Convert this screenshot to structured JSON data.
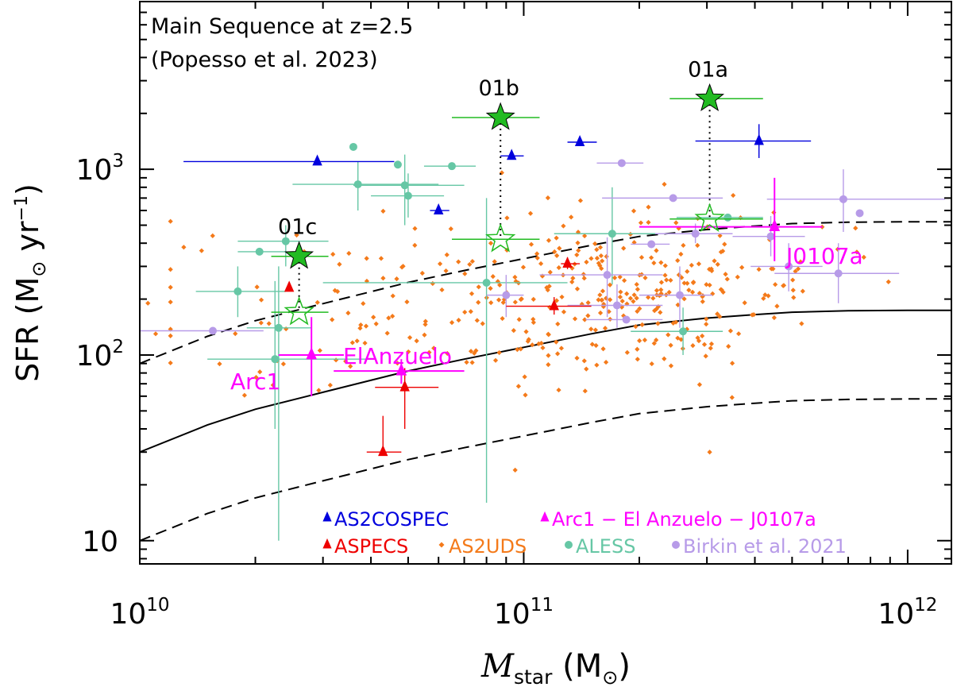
{
  "chart_data": {
    "type": "scatter",
    "x_scale": "log",
    "y_scale": "log",
    "xlim": [
      10000000000.0,
      1300000000000.0
    ],
    "ylim": [
      7.5,
      8000
    ],
    "xlabel": {
      "main": "M",
      "sub": "star",
      "unit_pre": " (M",
      "unit_sym": "⊙",
      "unit_post": ")"
    },
    "ylabel": {
      "pre": "SFR (M",
      "sym": "⊙",
      "mid": " yr",
      "sup": "−1",
      "post": ")"
    },
    "x_ticks": [
      {
        "v": 10000000000.0,
        "base": "10",
        "exp": "10"
      },
      {
        "v": 100000000000.0,
        "base": "10",
        "exp": "11"
      },
      {
        "v": 1000000000000.0,
        "base": "10",
        "exp": "12"
      }
    ],
    "y_ticks": [
      {
        "v": 10,
        "base": "10",
        "exp": ""
      },
      {
        "v": 100,
        "base": "10",
        "exp": "2"
      },
      {
        "v": 1000,
        "base": "10",
        "exp": "3"
      }
    ],
    "annotation": {
      "line1": "Main Sequence at z=2.5",
      "line2": "(Popesso et al. 2023)"
    },
    "colors": {
      "as2cospec": "#0000dd",
      "aspecs": "#ee0000",
      "as2uds": "#f47a1a",
      "aless": "#66c7a5",
      "birkin": "#b79be8",
      "lensed": "#ff00ff",
      "stars": "#22bb22"
    },
    "main_sequence": {
      "x": [
        10000000000.0,
        15000000000.0,
        20000000000.0,
        30000000000.0,
        50000000000.0,
        70000000000.0,
        100000000000.0,
        150000000000.0,
        200000000000.0,
        300000000000.0,
        400000000000.0,
        500000000000.0,
        700000000000.0,
        1000000000000.0,
        1300000000000.0
      ],
      "y": [
        30,
        42,
        51,
        63,
        82,
        95,
        110,
        130,
        145,
        158,
        165,
        170,
        173,
        174,
        174
      ],
      "scatter_factor": 3.0
    },
    "targets": [
      {
        "name": "01a",
        "x": 305000000000.0,
        "y_obs": 2400,
        "y_corr": 540,
        "xerr": [
          240000000000.0,
          420000000000.0
        ]
      },
      {
        "name": "01b",
        "x": 87000000000.0,
        "y_obs": 1900,
        "y_corr": 420,
        "xerr": [
          65000000000.0,
          110000000000.0
        ]
      },
      {
        "name": "01c",
        "x": 26000000000.0,
        "y_obs": 340,
        "y_corr": 170,
        "xerr": [
          22000000000.0,
          31000000000.0
        ]
      }
    ],
    "lensed_labels": [
      "Arc1",
      "ElAnzuelo",
      "J0107a"
    ],
    "lensed": [
      {
        "x": 28000000000.0,
        "y": 100,
        "xerr": [
          23000000000.0,
          34000000000.0
        ],
        "yerr": [
          60,
          160
        ]
      },
      {
        "x": 48000000000.0,
        "y": 82,
        "xerr": [
          32000000000.0,
          70000000000.0
        ],
        "yerr": [
          70,
          95
        ]
      },
      {
        "x": 450000000000.0,
        "y": 490,
        "xerr": [
          200000000000.0,
          600000000000.0
        ],
        "yerr": [
          320,
          900
        ]
      }
    ],
    "as2cospec": [
      {
        "x": 29000000000.0,
        "y": 1100,
        "xerr": [
          13000000000.0,
          46000000000.0
        ]
      },
      {
        "x": 60000000000.0,
        "y": 600,
        "xerr": [
          57000000000.0,
          64000000000.0
        ]
      },
      {
        "x": 93000000000.0,
        "y": 1180,
        "xerr": [
          87000000000.0,
          100000000000.0
        ]
      },
      {
        "x": 140000000000.0,
        "y": 1400,
        "xerr": [
          130000000000.0,
          155000000000.0
        ]
      },
      {
        "x": 410000000000.0,
        "y": 1420,
        "xerr": [
          280000000000.0,
          560000000000.0
        ],
        "yerr": [
          1150,
          1750
        ]
      }
    ],
    "aspecs": [
      {
        "x": 24500000000.0,
        "y": 230
      },
      {
        "x": 43000000000.0,
        "y": 30,
        "xerr": [
          39000000000.0,
          48000000000.0
        ],
        "yerr": [
          30,
          47
        ]
      },
      {
        "x": 49000000000.0,
        "y": 67,
        "xerr": [
          41000000000.0,
          60000000000.0
        ],
        "yerr": [
          40,
          85
        ]
      },
      {
        "x": 120000000000.0,
        "y": 183,
        "xerr": [
          90000000000.0,
          150000000000.0
        ],
        "yerr": [
          165,
          205
        ]
      },
      {
        "x": 130000000000.0,
        "y": 310,
        "xerr": [
          125000000000.0,
          140000000000.0
        ],
        "yerr": [
          290,
          335
        ]
      }
    ],
    "aless": [
      {
        "x": 18000000000.0,
        "y": 220,
        "xerr": [
          14000000000.0,
          24000000000.0
        ],
        "yerr": [
          160,
          300
        ]
      },
      {
        "x": 20500000000.0,
        "y": 360,
        "xerr": [
          18000000000.0,
          24000000000.0
        ]
      },
      {
        "x": 22500000000.0,
        "y": 95,
        "xerr": [
          15000000000.0,
          40000000000.0
        ],
        "yerr": [
          40,
          250
        ]
      },
      {
        "x": 23000000000.0,
        "y": 140,
        "xerr": [
          19000000000.0,
          28000000000.0
        ],
        "yerr": [
          10,
          300
        ]
      },
      {
        "x": 24000000000.0,
        "y": 410,
        "xerr": [
          18000000000.0,
          31000000000.0
        ],
        "yerr": [
          300,
          500
        ]
      },
      {
        "x": 36000000000.0,
        "y": 1320
      },
      {
        "x": 37000000000.0,
        "y": 830,
        "xerr": [
          25000000000.0,
          60000000000.0
        ],
        "yerr": [
          600,
          1100
        ]
      },
      {
        "x": 47000000000.0,
        "y": 1060
      },
      {
        "x": 49000000000.0,
        "y": 820,
        "xerr": [
          36000000000.0,
          70000000000.0
        ],
        "yerr": [
          500,
          1200
        ]
      },
      {
        "x": 50000000000.0,
        "y": 720,
        "xerr": [
          40000000000.0,
          62000000000.0
        ],
        "yerr": [
          550,
          950
        ]
      },
      {
        "x": 65000000000.0,
        "y": 1040,
        "xerr": [
          55000000000.0,
          75000000000.0
        ]
      },
      {
        "x": 80000000000.0,
        "y": 245,
        "xerr": [
          30000000000.0,
          130000000000.0
        ],
        "yerr": [
          16,
          700
        ]
      },
      {
        "x": 170000000000.0,
        "y": 450,
        "xerr": [
          120000000000.0,
          240000000000.0
        ],
        "yerr": [
          240,
          800
        ]
      },
      {
        "x": 260000000000.0,
        "y": 134,
        "xerr": [
          190000000000.0,
          330000000000.0
        ],
        "yerr": [
          100,
          180
        ]
      },
      {
        "x": 340000000000.0,
        "y": 550,
        "xerr": [
          250000000000.0,
          420000000000.0
        ]
      }
    ],
    "birkin": [
      {
        "x": 15500000000.0,
        "y": 135,
        "xerr": [
          10000000000.0,
          21000000000.0
        ]
      },
      {
        "x": 90000000000.0,
        "y": 210,
        "xerr": [
          80000000000.0,
          100000000000.0
        ],
        "yerr": [
          160,
          270
        ]
      },
      {
        "x": 165000000000.0,
        "y": 270,
        "xerr": [
          110000000000.0,
          230000000000.0
        ],
        "yerr": [
          160,
          430
        ]
      },
      {
        "x": 175000000000.0,
        "y": 185,
        "xerr": [
          130000000000.0,
          230000000000.0
        ],
        "yerr": [
          140,
          240
        ]
      },
      {
        "x": 180000000000.0,
        "y": 1080,
        "xerr": [
          155000000000.0,
          205000000000.0
        ]
      },
      {
        "x": 185000000000.0,
        "y": 155,
        "xerr": [
          145000000000.0,
          230000000000.0
        ]
      },
      {
        "x": 215000000000.0,
        "y": 395,
        "xerr": [
          190000000000.0,
          240000000000.0
        ]
      },
      {
        "x": 245000000000.0,
        "y": 700,
        "xerr": [
          160000000000.0,
          330000000000.0
        ]
      },
      {
        "x": 255000000000.0,
        "y": 210,
        "xerr": [
          200000000000.0,
          310000000000.0
        ],
        "yerr": [
          140,
          300
        ]
      },
      {
        "x": 280000000000.0,
        "y": 450,
        "xerr": [
          220000000000.0,
          350000000000.0
        ],
        "yerr": [
          400,
          510
        ]
      },
      {
        "x": 440000000000.0,
        "y": 435,
        "xerr": [
          350000000000.0,
          540000000000.0
        ],
        "yerr": [
          340,
          560
        ]
      },
      {
        "x": 490000000000.0,
        "y": 300,
        "xerr": [
          390000000000.0,
          600000000000.0
        ],
        "yerr": [
          220,
          400
        ]
      },
      {
        "x": 660000000000.0,
        "y": 275,
        "xerr": [
          450000000000.0,
          950000000000.0
        ],
        "yerr": [
          190,
          400
        ]
      },
      {
        "x": 680000000000.0,
        "y": 690,
        "xerr": [
          430000000000.0,
          1250000000000.0
        ],
        "yerr": [
          460,
          1000
        ]
      },
      {
        "x": 750000000000.0,
        "y": 580
      }
    ],
    "as2uds_count": 400,
    "as2uds_extra": [
      {
        "x": 305000000000.0,
        "y": 30
      },
      {
        "x": 95000000000.0,
        "y": 24
      },
      {
        "x": 11000000000.0,
        "y": 130
      },
      {
        "x": 10500000000.0,
        "y": 190
      }
    ],
    "legend": [
      {
        "label": "AS2COSPEC",
        "marker": "triangle",
        "color": "#0000dd"
      },
      {
        "label": "Arc1 − El Anzuelo − J0107a",
        "marker": "triangle",
        "color": "#ff00ff"
      },
      {
        "label": "ASPECS",
        "marker": "triangle",
        "color": "#ee0000"
      },
      {
        "label": "AS2UDS",
        "marker": "diamond",
        "color": "#f47a1a"
      },
      {
        "label": "ALESS",
        "marker": "circle",
        "color": "#66c7a5"
      },
      {
        "label": "Birkin et al. 2021",
        "marker": "circle",
        "color": "#b79be8"
      }
    ]
  }
}
